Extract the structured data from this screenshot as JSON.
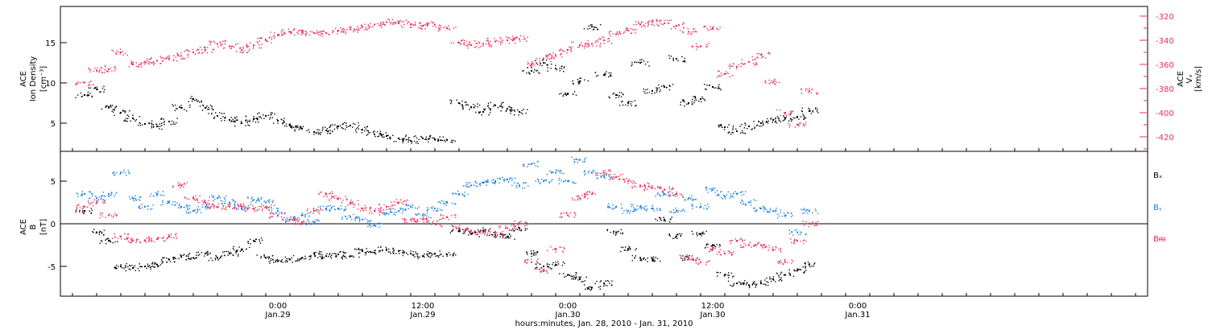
{
  "chart_data": [
    {
      "type": "scatter",
      "panel": "top",
      "ylabel_lines": [
        "ACE",
        "Ion Density",
        "[cm⁻³]"
      ],
      "y2label_lines": [
        "ACE",
        "Vₓ",
        "[km/s]"
      ],
      "ylim": [
        1.5,
        19.5
      ],
      "yticks": [
        5,
        10,
        15
      ],
      "y2lim": [
        -432,
        -312
      ],
      "y2ticks": [
        -320,
        -340,
        -360,
        -380,
        -400,
        -420
      ],
      "colors": {
        "density": "#000000",
        "vx": "#e8305a"
      },
      "series": [
        {
          "key": "density",
          "axis": "left",
          "x": [
            -16,
            -15,
            -14,
            -13,
            -12,
            -11,
            -10,
            -9,
            -8,
            -7,
            -6,
            -5,
            -4,
            -3,
            -2,
            -1,
            0,
            1,
            2,
            3,
            4,
            5,
            6,
            7,
            8,
            9,
            10,
            11,
            12,
            13,
            14,
            15,
            16,
            17,
            18,
            19,
            20,
            21,
            22,
            23,
            24,
            25,
            26,
            27,
            28,
            29,
            30,
            31,
            32,
            33,
            34,
            35,
            36,
            37,
            38,
            39,
            40,
            41,
            42,
            43,
            44
          ],
          "y": [
            8.5,
            9.2,
            7.0,
            6.3,
            5.6,
            4.9,
            4.6,
            5.2,
            6.9,
            8.0,
            6.9,
            5.9,
            5.4,
            5.0,
            5.5,
            5.9,
            5.3,
            4.7,
            4.3,
            3.9,
            4.1,
            4.6,
            4.7,
            4.2,
            3.6,
            3.4,
            3.1,
            2.8,
            3.1,
            3.0,
            2.9,
            7.5,
            7.0,
            6.4,
            7.2,
            6.8,
            6.4,
            11.5,
            12.5,
            11.8,
            8.6,
            10.2,
            17.0,
            11.0,
            8.5,
            7.5,
            12.5,
            9.0,
            9.5,
            13.0,
            7.5,
            8.0,
            9.5,
            4.5,
            4.0,
            4.6,
            5.0,
            5.4,
            5.6,
            5.8,
            6.5
          ]
        },
        {
          "key": "vx",
          "axis": "right",
          "x": [
            -16,
            -15,
            -14,
            -13,
            -12,
            -11,
            -10,
            -9,
            -8,
            -7,
            -6,
            -5,
            -4,
            -3,
            -2,
            -1,
            0,
            1,
            2,
            3,
            4,
            5,
            6,
            7,
            8,
            9,
            10,
            11,
            12,
            13,
            14,
            15,
            16,
            17,
            18,
            19,
            20,
            21,
            22,
            23,
            24,
            25,
            26,
            27,
            28,
            29,
            30,
            31,
            32,
            33,
            34,
            35,
            36,
            37,
            38,
            39,
            40,
            41,
            42,
            43,
            44
          ],
          "y": [
            -375,
            -365,
            -364,
            -350,
            -360,
            -358,
            -357,
            -355,
            -353,
            -350,
            -348,
            -343,
            -345,
            -348,
            -344,
            -340,
            -336,
            -333,
            -333,
            -334,
            -334,
            -332,
            -331,
            -329,
            -327,
            -325,
            -326,
            -327,
            -328,
            -327,
            -330,
            -342,
            -344,
            -343,
            -341,
            -340,
            -339,
            -360,
            -355,
            -353,
            -348,
            -344,
            -343,
            -340,
            -335,
            -332,
            -327,
            -325,
            -326,
            -328,
            -333,
            -345,
            -330,
            -368,
            -362,
            -358,
            -352,
            -375,
            -400,
            -410,
            -382
          ]
        }
      ]
    },
    {
      "type": "scatter",
      "panel": "bottom",
      "ylabel_lines": [
        "ACE",
        "B",
        "[nT]"
      ],
      "ylim": [
        -8.5,
        8.5
      ],
      "yticks": [
        -5,
        0,
        5
      ],
      "zero_line": true,
      "legend": [
        "Bₓ",
        "Bᵧ",
        "Bᵯ"
      ],
      "colors": {
        "bx": "#000000",
        "by": "#1a7fdf",
        "bz": "#e8305a"
      },
      "series": [
        {
          "key": "bx",
          "x": [
            -16,
            -15,
            -14,
            -13,
            -12,
            -11,
            -10,
            -9,
            -8,
            -7,
            -6,
            -5,
            -4,
            -3,
            -2,
            -1,
            0,
            1,
            2,
            3,
            4,
            5,
            6,
            7,
            8,
            9,
            10,
            11,
            12,
            13,
            14,
            15,
            16,
            17,
            18,
            19,
            20,
            21,
            22,
            23,
            24,
            25,
            26,
            27,
            28,
            29,
            30,
            31,
            32,
            33,
            34,
            35,
            36,
            37,
            38,
            39,
            40,
            41,
            42,
            43,
            44
          ],
          "y": [
            1.5,
            -1.0,
            -2.0,
            -5.0,
            -5.2,
            -5.0,
            -4.8,
            -4.2,
            -3.8,
            -4.0,
            -3.5,
            -4.0,
            -3.5,
            -3.0,
            -2.0,
            -4.0,
            -4.4,
            -4.2,
            -4.0,
            -3.5,
            -3.8,
            -3.6,
            -3.8,
            -3.2,
            -3.4,
            -3.0,
            -3.2,
            -3.5,
            -3.8,
            -3.5,
            -3.6,
            -0.8,
            -1.2,
            -0.8,
            -1.3,
            -1.5,
            -0.5,
            -3.5,
            -5.0,
            -4.8,
            -6.0,
            -6.5,
            -7.5,
            -7.0,
            -1.0,
            -3.0,
            -4.0,
            -4.2,
            0.5,
            -1.5,
            -4.0,
            -1.2,
            -2.5,
            -6.0,
            -7.0,
            -7.2,
            -7.0,
            -6.5,
            -6.0,
            -5.5,
            -4.8
          ]
        },
        {
          "key": "by",
          "x": [
            -16,
            -15,
            -14,
            -13,
            -12,
            -11,
            -10,
            -9,
            -8,
            -7,
            -6,
            -5,
            -4,
            -3,
            -2,
            -1,
            0,
            1,
            2,
            3,
            4,
            5,
            6,
            7,
            8,
            9,
            10,
            11,
            12,
            13,
            14,
            15,
            16,
            17,
            18,
            19,
            20,
            21,
            22,
            23,
            24,
            25,
            26,
            27,
            28,
            29,
            30,
            31,
            32,
            33,
            34,
            35,
            36,
            37,
            38,
            39,
            40,
            41,
            42,
            43,
            44
          ],
          "y": [
            3.5,
            3.0,
            3.5,
            6.0,
            3.0,
            2.0,
            3.5,
            2.5,
            2.0,
            1.5,
            2.0,
            3.0,
            2.5,
            1.8,
            2.8,
            2.5,
            1.5,
            0.5,
            1.0,
            0.2,
            1.8,
            1.8,
            0.8,
            0.5,
            -0.2,
            1.2,
            1.5,
            2.0,
            1.0,
            1.8,
            2.5,
            3.5,
            4.5,
            4.8,
            5.0,
            5.2,
            4.5,
            7.0,
            5.0,
            6.0,
            5.0,
            7.5,
            6.0,
            5.5,
            2.0,
            1.5,
            2.0,
            1.8,
            3.5,
            1.5,
            3.0,
            2.0,
            4.0,
            3.2,
            3.5,
            2.5,
            1.8,
            1.5,
            1.0,
            -1.0,
            1.5
          ]
        },
        {
          "key": "bz",
          "x": [
            -16,
            -15,
            -14,
            -13,
            -12,
            -11,
            -10,
            -9,
            -8,
            -7,
            -6,
            -5,
            -4,
            -3,
            -2,
            -1,
            0,
            1,
            2,
            3,
            4,
            5,
            6,
            7,
            8,
            9,
            10,
            11,
            12,
            13,
            14,
            15,
            16,
            17,
            18,
            19,
            20,
            21,
            22,
            23,
            24,
            25,
            26,
            27,
            28,
            29,
            30,
            31,
            32,
            33,
            34,
            35,
            36,
            37,
            38,
            39,
            40,
            41,
            42,
            43,
            44
          ],
          "y": [
            2.0,
            2.5,
            1.0,
            -1.5,
            -2.0,
            -2.0,
            -1.8,
            -1.5,
            4.5,
            3.0,
            2.5,
            2.0,
            2.0,
            2.0,
            1.8,
            2.0,
            1.0,
            0.5,
            0.2,
            1.5,
            3.5,
            3.0,
            2.5,
            1.8,
            1.5,
            2.0,
            2.5,
            0.5,
            0.5,
            0.0,
            0.8,
            -0.5,
            -0.8,
            -1.0,
            -1.2,
            -0.5,
            0.0,
            -4.5,
            -5.5,
            -3.0,
            1.0,
            3.0,
            3.5,
            6.0,
            5.5,
            5.0,
            4.5,
            4.2,
            4.0,
            3.5,
            -4.0,
            -4.5,
            -3.0,
            -3.5,
            -2.0,
            -2.5,
            -2.5,
            -3.0,
            -4.5,
            -2.0,
            0.0
          ]
        }
      ]
    }
  ],
  "x_axis": {
    "xlim": [
      -18,
      72
    ],
    "major_ticks": [
      0,
      12,
      24,
      36,
      48,
      60,
      72
    ],
    "tick_labels": [
      {
        "x": 0,
        "time": "0:00",
        "date": "Jan.29"
      },
      {
        "x": 12,
        "time": "12:00",
        "date": "Jan.29"
      },
      {
        "x": 24,
        "time": "0:00",
        "date": "Jan.30"
      },
      {
        "x": 36,
        "time": "12:00",
        "date": "Jan.30"
      },
      {
        "x": 48,
        "time": "0:00",
        "date": "Jan.31"
      }
    ],
    "xlabel": "hours:minutes, Jan. 28, 2010 - Jan. 31, 2010"
  }
}
